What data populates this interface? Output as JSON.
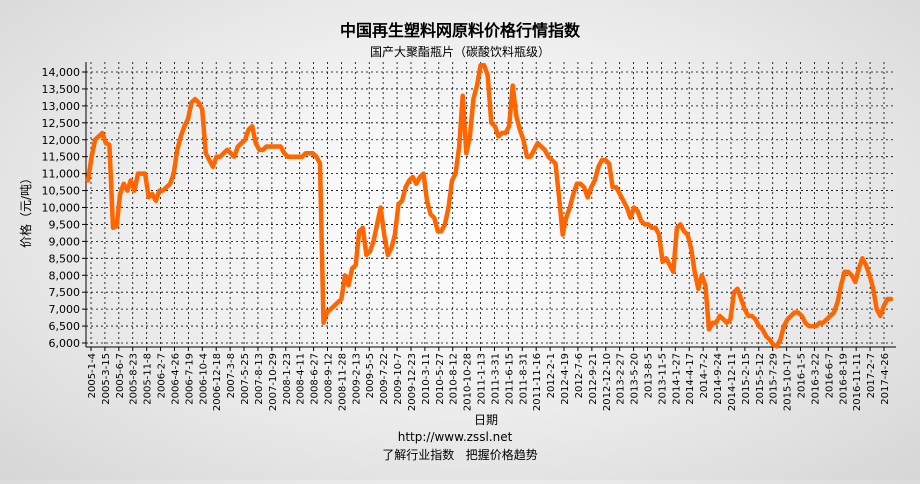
{
  "chart_data": {
    "type": "line",
    "title": "中国再生塑料网原料价格行情指数",
    "subtitle": "国产大聚酯瓶片（碳酸饮料瓶级）",
    "xlabel": "日期",
    "ylabel": "价格（元/吨）",
    "ylim": [
      6000,
      14000
    ],
    "y_ticks": [
      "6,000",
      "6,500",
      "7,000",
      "7,500",
      "8,000",
      "8,500",
      "9,000",
      "9,500",
      "10,000",
      "10,500",
      "11,000",
      "11,500",
      "12,000",
      "12,500",
      "13,000",
      "13,500",
      "14,000"
    ],
    "x_ticks": [
      "2005-1-4",
      "2005-3-15",
      "2005-6-7",
      "2005-8-23",
      "2005-11-8",
      "2006-2-7",
      "2006-4-26",
      "2006-7-19",
      "2006-10-4",
      "2006-12-18",
      "2007-3-8",
      "2007-5-25",
      "2007-8-13",
      "2007-10-29",
      "2008-1-23",
      "2008-4-11",
      "2008-6-27",
      "2008-9-12",
      "2008-11-28",
      "2009-2-13",
      "2009-5-5",
      "2009-7-22",
      "2009-10-7",
      "2009-12-23",
      "2010-3-11",
      "2010-5-27",
      "2010-8-12",
      "2010-10-28",
      "2011-1-13",
      "2011-3-31",
      "2011-6-15",
      "2011-8-31",
      "2011-11-16",
      "2012-2-1",
      "2012-4-19",
      "2012-7-6",
      "2012-9-21",
      "2012-12-10",
      "2013-2-27",
      "2013-5-20",
      "2013-8-5",
      "2013-11-5",
      "2014-1-27",
      "2014-4-17",
      "2014-7-2",
      "2014-9-24",
      "2014-12-11",
      "2015-2-15",
      "2015-5-12",
      "2015-7-29",
      "2015-10-17",
      "2016-1-5",
      "2016-3-22",
      "2016-6-7",
      "2016-8-19",
      "2016-11-11",
      "2017-2-7",
      "2017-4-26"
    ],
    "grid": true,
    "legend": "none",
    "line_color": "#ff6600",
    "series": [
      {
        "values": [
          10800,
          11500,
          12000,
          12100,
          12200,
          11900,
          11850,
          9400,
          9450,
          10400,
          10700,
          10500,
          10800,
          10500,
          11000,
          11000,
          11000,
          10300,
          10400,
          10200,
          10500,
          10500,
          10600,
          10700,
          11000,
          11700,
          12100,
          12400,
          12600,
          13100,
          13200,
          13100,
          12900,
          11600,
          11400,
          11200,
          11500,
          11500,
          11600,
          11700,
          11600,
          11500,
          11800,
          11900,
          12000,
          12300,
          12400,
          11900,
          11700,
          11700,
          11800,
          11800,
          11800,
          11800,
          11800,
          11600,
          11500,
          11500,
          11500,
          11500,
          11500,
          11600,
          11600,
          11600,
          11500,
          11300,
          6600,
          6900,
          7000,
          7100,
          7200,
          7300,
          8000,
          7700,
          8200,
          8300,
          9300,
          9400,
          8600,
          8700,
          9000,
          9500,
          10000,
          9200,
          8600,
          8800,
          9200,
          10100,
          10200,
          10600,
          10800,
          10900,
          10700,
          10900,
          11000,
          10200,
          9800,
          9700,
          9300,
          9300,
          9500,
          10000,
          10800,
          11000,
          11800,
          13300,
          11600,
          12100,
          13200,
          13600,
          14200,
          14200,
          13900,
          12500,
          12400,
          12100,
          12200,
          12200,
          12400,
          13600,
          12700,
          12300,
          12000,
          11500,
          11500,
          11700,
          11900,
          11800,
          11700,
          11500,
          11400,
          11300,
          10300,
          9200,
          9700,
          10000,
          10400,
          10700,
          10700,
          10600,
          10300,
          10600,
          10800,
          11200,
          11400,
          11400,
          11300,
          10600,
          10600,
          10400,
          10200,
          10000,
          9700,
          10000,
          9900,
          9600,
          9500,
          9500,
          9400,
          9400,
          9200,
          8400,
          8500,
          8300,
          8100,
          9400,
          9500,
          9300,
          9200,
          8800,
          8100,
          7600,
          8000,
          7700,
          6400,
          6600,
          6600,
          6800,
          6700,
          6600,
          6700,
          7500,
          7600,
          7300,
          7000,
          6800,
          6800,
          6700,
          6500,
          6400,
          6200,
          6100,
          5950,
          5900,
          6100,
          6500,
          6700,
          6800,
          6900,
          6900,
          6800,
          6600,
          6500,
          6500,
          6500,
          6600,
          6600,
          6700,
          6800,
          6900,
          7200,
          7700,
          8100,
          8100,
          8000,
          7800,
          8200,
          8500,
          8300,
          8000,
          7600,
          7000,
          6800,
          7100,
          7300,
          7300
        ]
      }
    ]
  },
  "footer": {
    "url": "http://www.zssl.net",
    "slogan": "了解行业指数   把握价格趋势"
  }
}
